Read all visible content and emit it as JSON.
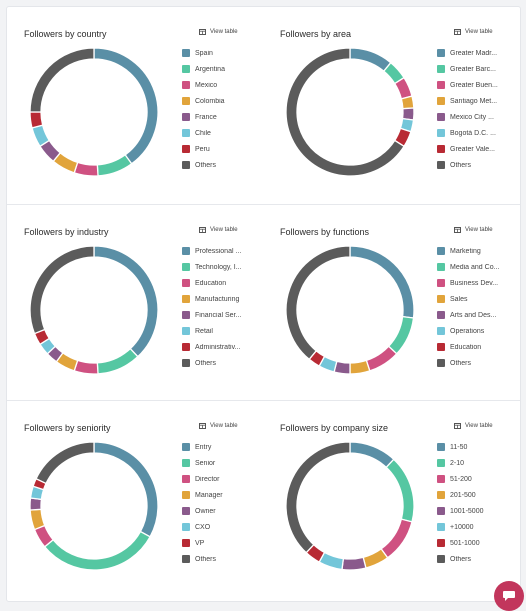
{
  "view_table_label": "View table",
  "segment_colors": [
    "#5a8fa6",
    "#55c7a2",
    "#cf5181",
    "#e1a43b",
    "#8a5a8c",
    "#73c6d9",
    "#b82a34",
    "#5b5b5b"
  ],
  "chart_data": [
    {
      "id": "country",
      "type": "pie",
      "title": "Followers by country",
      "categories": [
        "Spain",
        "Argentina",
        "Mexico",
        "Colombia",
        "France",
        "Chile",
        "Peru",
        "Others"
      ],
      "values": [
        40,
        9,
        6,
        6,
        5,
        5,
        4,
        25
      ]
    },
    {
      "id": "area",
      "type": "pie",
      "title": "Followers by area",
      "categories": [
        "Greater Madr...",
        "Greater Barc...",
        "Greater Buen...",
        "Santiago Met...",
        "Mexico City ...",
        "Bogotá D.C. ...",
        "Greater Vale...",
        "Others"
      ],
      "values": [
        11,
        5,
        5,
        3,
        3,
        3,
        4,
        66
      ]
    },
    {
      "id": "industry",
      "type": "pie",
      "title": "Followers by industry",
      "categories": [
        "Professional ...",
        "Technology, I...",
        "Education",
        "Manufacturing",
        "Financial Ser...",
        "Retail",
        "Administrativ...",
        "Others"
      ],
      "values": [
        38,
        11,
        6,
        5,
        3,
        3,
        3,
        31
      ]
    },
    {
      "id": "functions",
      "type": "pie",
      "title": "Followers by functions",
      "categories": [
        "Marketing",
        "Media and Co...",
        "Business Dev...",
        "Sales",
        "Arts and Des...",
        "Operations",
        "Education",
        "Others"
      ],
      "values": [
        27,
        10,
        8,
        5,
        4,
        4,
        3,
        39
      ]
    },
    {
      "id": "seniority",
      "type": "pie",
      "title": "Followers by seniority",
      "categories": [
        "Entry",
        "Senior",
        "Director",
        "Manager",
        "Owner",
        "CXO",
        "VP",
        "Others"
      ],
      "values": [
        33,
        31,
        5,
        5,
        3,
        3,
        2,
        18
      ]
    },
    {
      "id": "company_size",
      "type": "pie",
      "title": "Followers by company size",
      "categories": [
        "11-50",
        "2-10",
        "51-200",
        "201-500",
        "1001-5000",
        "+10000",
        "501-1000",
        "Others"
      ],
      "values": [
        12,
        17,
        11,
        6,
        6,
        6,
        4,
        38
      ]
    }
  ]
}
